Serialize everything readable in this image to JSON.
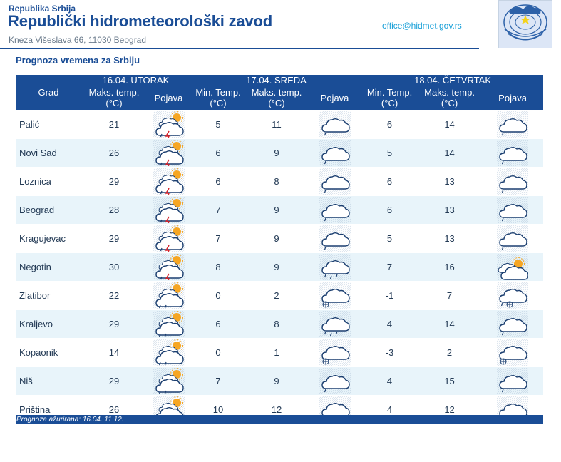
{
  "header": {
    "country": "Republika Srbija",
    "institution": "Republički hidrometeorološki zavod",
    "address": "Kneza Višeslava 66, 11030 Beograd",
    "email": "office@hidmet.gov.rs",
    "logo_text": "RHMZ Srbije"
  },
  "section_title": "Prognoza vremena za Srbiju",
  "table": {
    "city_header": "Grad",
    "days": [
      {
        "date": "16.04. UTORAK",
        "col1": "Maks. temp. (°C)",
        "icon": "Pojava"
      },
      {
        "date": "17.04. SREDA",
        "col0": "Min. Temp. (°C)",
        "col1": "Maks. temp. (°C)",
        "icon": "Pojava"
      },
      {
        "date": "18.04. ČETVRTAK",
        "col0": "Min. Temp. (°C)",
        "col1": "Maks. temp. (°C)",
        "icon": "Pojava"
      }
    ],
    "rows": [
      {
        "city": "Palić",
        "d1max": "21",
        "d1icon": "storm-sun-icon",
        "d2min": "5",
        "d2max": "11",
        "d2icon": "cloud-drizzle-icon",
        "d3min": "6",
        "d3max": "14",
        "d3icon": "cloud-drizzle-icon"
      },
      {
        "city": "Novi Sad",
        "d1max": "26",
        "d1icon": "storm-sun-icon",
        "d2min": "6",
        "d2max": "9",
        "d2icon": "cloud-drizzle-icon",
        "d3min": "5",
        "d3max": "14",
        "d3icon": "cloud-drizzle-icon"
      },
      {
        "city": "Loznica",
        "d1max": "29",
        "d1icon": "storm-sun-icon",
        "d2min": "6",
        "d2max": "8",
        "d2icon": "cloud-drizzle-icon",
        "d3min": "6",
        "d3max": "13",
        "d3icon": "cloud-drizzle-icon"
      },
      {
        "city": "Beograd",
        "d1max": "28",
        "d1icon": "storm-sun-icon",
        "d2min": "7",
        "d2max": "9",
        "d2icon": "cloud-drizzle-icon",
        "d3min": "6",
        "d3max": "13",
        "d3icon": "cloud-drizzle-icon"
      },
      {
        "city": "Kragujevac",
        "d1max": "29",
        "d1icon": "storm-sun-icon",
        "d2min": "7",
        "d2max": "9",
        "d2icon": "cloud-drizzle-icon",
        "d3min": "5",
        "d3max": "13",
        "d3icon": "cloud-drizzle-icon"
      },
      {
        "city": "Negotin",
        "d1max": "30",
        "d1icon": "storm-sun-icon",
        "d2min": "8",
        "d2max": "9",
        "d2icon": "cloud-rain-icon",
        "d3min": "7",
        "d3max": "16",
        "d3icon": "cloud-sun-icon"
      },
      {
        "city": "Zlatibor",
        "d1max": "22",
        "d1icon": "cloud-sun-drizzle-icon",
        "d2min": "0",
        "d2max": "2",
        "d2icon": "cloud-snow-icon",
        "d3min": "-1",
        "d3max": "7",
        "d3icon": "cloud-sleet-icon"
      },
      {
        "city": "Kraljevo",
        "d1max": "29",
        "d1icon": "cloud-sun-drizzle-icon",
        "d2min": "6",
        "d2max": "8",
        "d2icon": "cloud-rain-icon",
        "d3min": "4",
        "d3max": "14",
        "d3icon": "cloud-drizzle-icon"
      },
      {
        "city": "Kopaonik",
        "d1max": "14",
        "d1icon": "cloud-sun-drizzle-icon",
        "d2min": "0",
        "d2max": "1",
        "d2icon": "cloud-snow-icon",
        "d3min": "-3",
        "d3max": "2",
        "d3icon": "cloud-snow-icon"
      },
      {
        "city": "Niš",
        "d1max": "29",
        "d1icon": "cloud-sun-drizzle-icon",
        "d2min": "7",
        "d2max": "9",
        "d2icon": "cloud-drizzle-icon",
        "d3min": "4",
        "d3max": "15",
        "d3icon": "cloud-drizzle-icon"
      },
      {
        "city": "Priština",
        "d1max": "26",
        "d1icon": "cloud-sun-drizzle-icon",
        "d2min": "10",
        "d2max": "12",
        "d2icon": "cloud-rain-icon",
        "d3min": "4",
        "d3max": "12",
        "d3icon": "cloud-drizzle-icon"
      }
    ]
  },
  "footer": "Prognoza ažurirana:  16.04. 11:12.",
  "colors": {
    "header_blue": "#1a4d96",
    "row_alt": "#e8f4fa",
    "email": "#1aa0d8"
  }
}
